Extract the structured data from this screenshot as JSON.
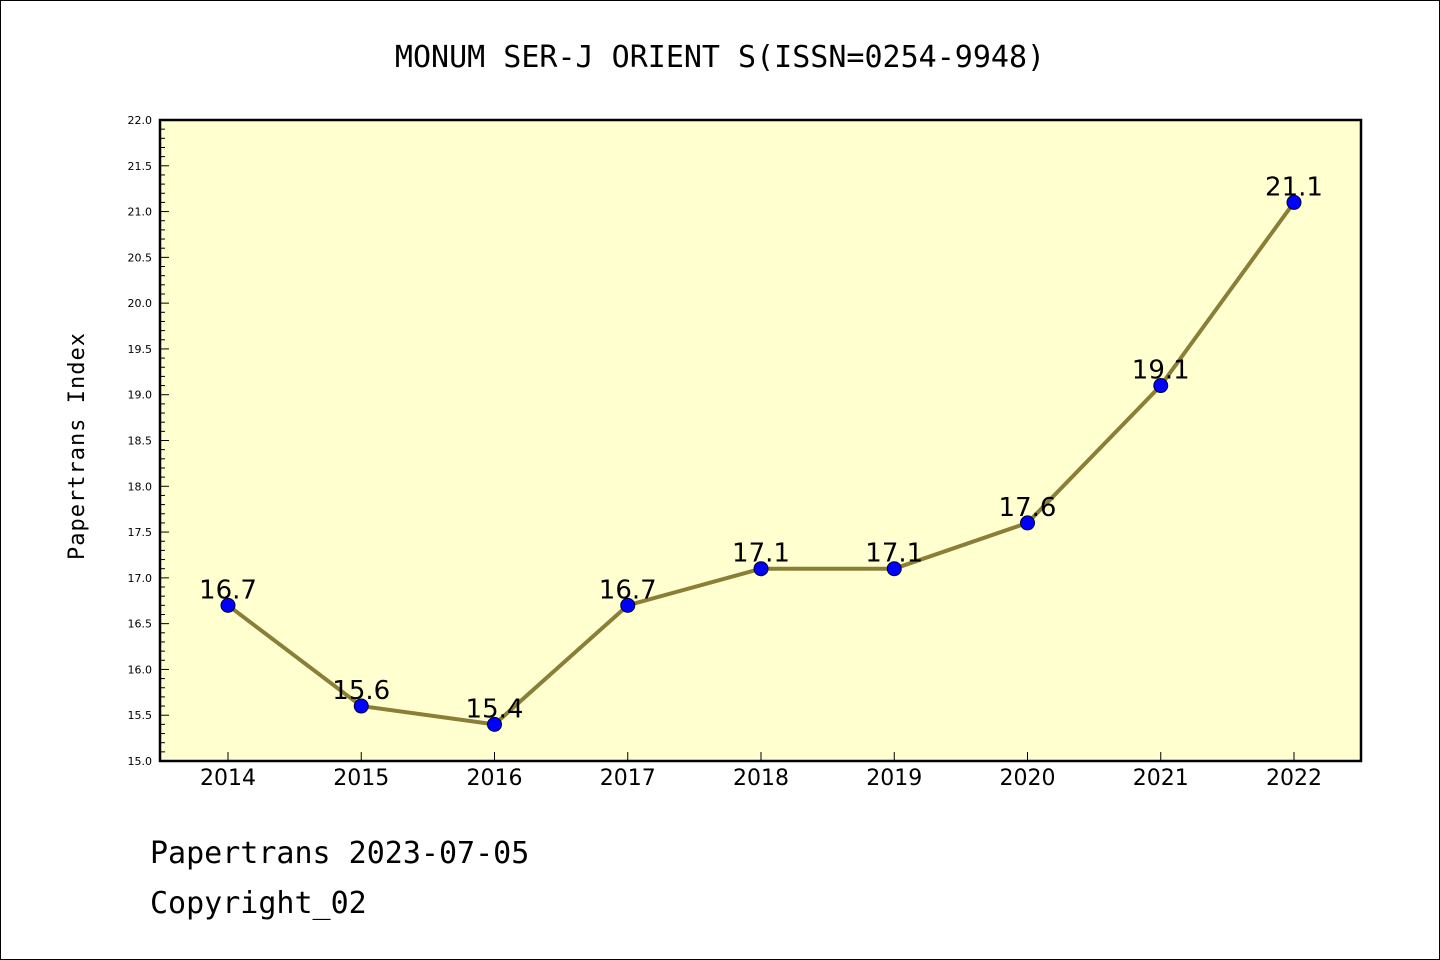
{
  "chart_data": {
    "type": "line",
    "title": "MONUM SER-J ORIENT S(ISSN=0254-9948)",
    "xlabel": "",
    "ylabel": "Papertrans Index",
    "x": [
      "2014",
      "2015",
      "2016",
      "2017",
      "2018",
      "2019",
      "2020",
      "2021",
      "2022"
    ],
    "series": [
      {
        "values": [
          16.7,
          15.6,
          15.4,
          16.7,
          17.1,
          17.1,
          17.6,
          19.1,
          21.1
        ],
        "data_labels": [
          "16.7",
          "15.6",
          "15.4",
          "16.7",
          "17.1",
          "17.1",
          "17.6",
          "19.1",
          "21.1"
        ]
      }
    ],
    "ylim": [
      15.0,
      22.0
    ],
    "yticks": [
      "15.0",
      "15.5",
      "16.0",
      "16.5",
      "17.0",
      "17.5",
      "18.0",
      "18.5",
      "19.0",
      "19.5",
      "20.0",
      "20.5",
      "21.0",
      "21.5",
      "22.0"
    ],
    "grid": false,
    "colors": {
      "plot_background": "#ffffd0",
      "line": "#8b7e36",
      "marker": "#0000ff"
    }
  },
  "footer": {
    "line1": "Papertrans 2023-07-05",
    "line2": "Copyright_02"
  }
}
